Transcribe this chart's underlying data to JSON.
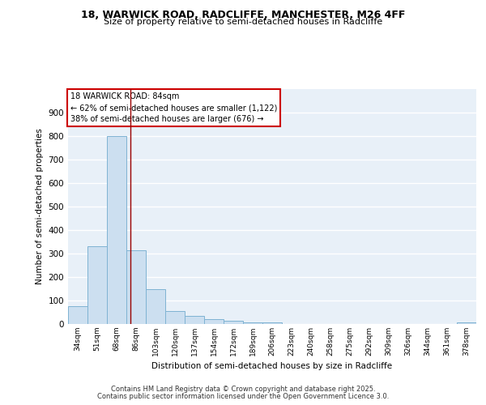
{
  "title1": "18, WARWICK ROAD, RADCLIFFE, MANCHESTER, M26 4FF",
  "title2": "Size of property relative to semi-detached houses in Radcliffe",
  "xlabel": "Distribution of semi-detached houses by size in Radcliffe",
  "ylabel": "Number of semi-detached properties",
  "categories": [
    "34sqm",
    "51sqm",
    "68sqm",
    "86sqm",
    "103sqm",
    "120sqm",
    "137sqm",
    "154sqm",
    "172sqm",
    "189sqm",
    "206sqm",
    "223sqm",
    "240sqm",
    "258sqm",
    "275sqm",
    "292sqm",
    "309sqm",
    "326sqm",
    "344sqm",
    "361sqm",
    "378sqm"
  ],
  "values": [
    75,
    330,
    800,
    315,
    150,
    55,
    33,
    22,
    13,
    8,
    8,
    0,
    0,
    0,
    0,
    0,
    0,
    0,
    0,
    0,
    8
  ],
  "bar_color": "#ccdff0",
  "bar_edge_color": "#7fb3d3",
  "background_color": "#e8f0f8",
  "grid_color": "#ffffff",
  "vline_x": 2.72,
  "vline_color": "#990000",
  "annotation_title": "18 WARWICK ROAD: 84sqm",
  "annotation_line1": "← 62% of semi-detached houses are smaller (1,122)",
  "annotation_line2": "38% of semi-detached houses are larger (676) →",
  "annotation_box_color": "#ffffff",
  "annotation_box_edge": "#cc0000",
  "ylim": [
    0,
    1000
  ],
  "yticks": [
    0,
    100,
    200,
    300,
    400,
    500,
    600,
    700,
    800,
    900
  ],
  "footer1": "Contains HM Land Registry data © Crown copyright and database right 2025.",
  "footer2": "Contains public sector information licensed under the Open Government Licence 3.0."
}
